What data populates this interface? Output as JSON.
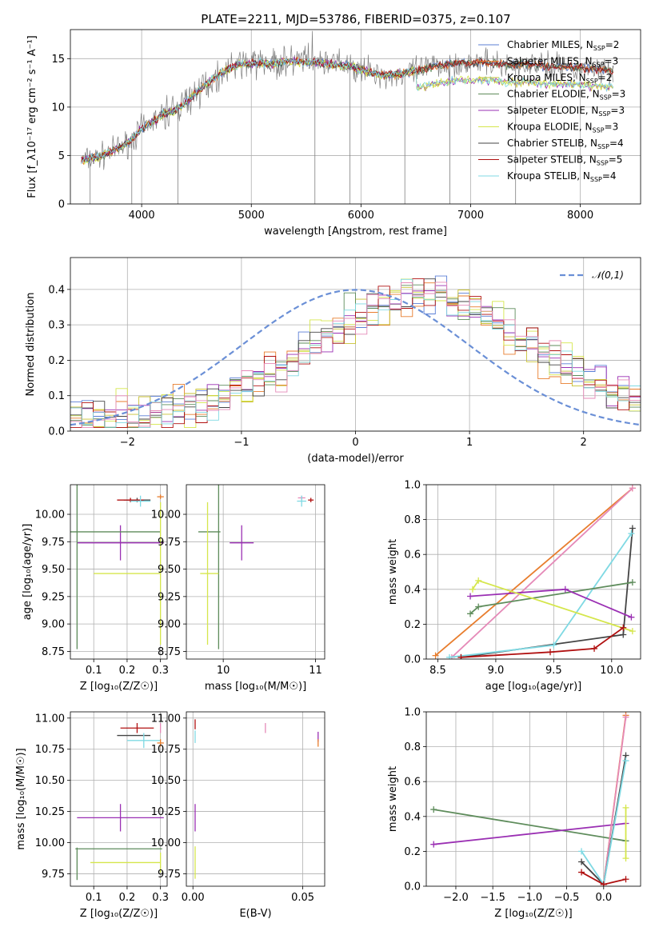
{
  "figure_title": "PLATE=2211, MJD=53786, FIBERID=0375, z=0.107",
  "colors": {
    "Chabrier MILES": "#5b7fd6",
    "Salpeter MILES": "#e87d2d",
    "Kroupa MILES": "#c8c234",
    "Chabrier ELODIE": "#5e8c5b",
    "Salpeter ELODIE": "#9a2fb3",
    "Kroupa ELODIE": "#d5e64c",
    "Chabrier STELIB": "#444444",
    "Salpeter STELIB": "#b01010",
    "Kroupa STELIB": "#7fd9e3",
    "data": "#7f7f7f",
    "salpeter_elodie_pink": "#e58ab8",
    "normal": "#6a8fd6"
  },
  "chart_data": [
    {
      "id": "spectrum",
      "type": "line",
      "xlabel": "wavelength [Angstrom, rest frame]",
      "ylabel": "Flux [f_λ10⁻¹⁷ erg cm⁻² s⁻¹ A⁻¹]",
      "xlim": [
        3350,
        8550
      ],
      "ylim": [
        0,
        18
      ],
      "xticks": [
        4000,
        5000,
        6000,
        7000,
        8000
      ],
      "yticks": [
        0,
        5,
        10,
        15
      ],
      "grid": true,
      "legend_position": "top-right",
      "legend": [
        {
          "label": "Chabrier MILES, N",
          "sub": "SSP",
          "suffix": "=2",
          "color": "#5b7fd6"
        },
        {
          "label": "Salpeter MILES, N",
          "sub": "SSP",
          "suffix": "=3",
          "color": "#e87d2d"
        },
        {
          "label": "Kroupa MILES, N",
          "sub": "SSP",
          "suffix": "=2",
          "color": "#c8c234"
        },
        {
          "label": "Chabrier ELODIE, N",
          "sub": "SSP",
          "suffix": "=3",
          "color": "#5e8c5b"
        },
        {
          "label": "Salpeter ELODIE, N",
          "sub": "SSP",
          "suffix": "=3",
          "color": "#9a2fb3"
        },
        {
          "label": "Kroupa ELODIE, N",
          "sub": "SSP",
          "suffix": "=3",
          "color": "#d5e64c"
        },
        {
          "label": "Chabrier STELIB, N",
          "sub": "SSP",
          "suffix": "=4",
          "color": "#444444"
        },
        {
          "label": "Salpeter STELIB, N",
          "sub": "SSP",
          "suffix": "=5",
          "color": "#b01010"
        },
        {
          "label": "Kroupa STELIB, N",
          "sub": "SSP",
          "suffix": "=4",
          "color": "#7fd9e3"
        }
      ],
      "continuum": [
        [
          3450,
          4.5
        ],
        [
          3600,
          4.8
        ],
        [
          3750,
          5.5
        ],
        [
          3900,
          6.5
        ],
        [
          4000,
          7.8
        ],
        [
          4100,
          8.5
        ],
        [
          4200,
          9.3
        ],
        [
          4300,
          9.6
        ],
        [
          4400,
          10.5
        ],
        [
          4500,
          11.5
        ],
        [
          4600,
          12.5
        ],
        [
          4700,
          13.3
        ],
        [
          4800,
          14.0
        ],
        [
          4900,
          14.4
        ],
        [
          5000,
          14.5
        ],
        [
          5100,
          14.6
        ],
        [
          5200,
          14.4
        ],
        [
          5300,
          14.7
        ],
        [
          5400,
          14.7
        ],
        [
          5500,
          14.6
        ],
        [
          5600,
          14.6
        ],
        [
          5700,
          14.5
        ],
        [
          5800,
          14.3
        ],
        [
          5900,
          14.2
        ],
        [
          6000,
          13.9
        ],
        [
          6100,
          13.5
        ],
        [
          6200,
          13.3
        ],
        [
          6300,
          13.4
        ],
        [
          6400,
          13.5
        ],
        [
          6500,
          13.7
        ],
        [
          6600,
          14.0
        ],
        [
          6700,
          14.3
        ],
        [
          6800,
          14.4
        ],
        [
          6900,
          14.6
        ],
        [
          7000,
          14.5
        ],
        [
          7100,
          14.6
        ],
        [
          7200,
          14.5
        ],
        [
          7300,
          14.4
        ],
        [
          7400,
          14.3
        ],
        [
          7500,
          14.4
        ],
        [
          7600,
          14.3
        ],
        [
          7700,
          14.2
        ],
        [
          7800,
          14.2
        ],
        [
          7900,
          14.1
        ],
        [
          8000,
          14.1
        ],
        [
          8100,
          14.0
        ],
        [
          8200,
          13.9
        ],
        [
          8300,
          13.8
        ]
      ]
    },
    {
      "id": "residuals",
      "type": "step",
      "xlabel": "(data-model)/error",
      "ylabel": "Normed distribution",
      "xlim": [
        -2.5,
        2.5
      ],
      "ylim": [
        0,
        0.49
      ],
      "xticks": [
        -2,
        -1,
        0,
        1,
        2
      ],
      "yticks": [
        0.0,
        0.1,
        0.2,
        0.3,
        0.4
      ],
      "grid": true,
      "legend_position": "top-right",
      "legend": [
        {
          "label": "𝒩(0,1)",
          "color": "#6a8fd6"
        }
      ],
      "peak_x": 0.6,
      "peak_y": 0.34,
      "width": 0.95
    },
    {
      "id": "age_vs_Z",
      "type": "scatter",
      "xlabel": "Z [log₁₀(Z/Z☉)]",
      "ylabel": "age  [log₁₀(age/yr)]",
      "xlim": [
        0.03,
        0.32
      ],
      "ylim": [
        8.68,
        10.27
      ],
      "xticks": [
        0.1,
        0.2,
        0.3
      ],
      "yticks": [
        8.75,
        9.0,
        9.25,
        9.5,
        9.75,
        10.0
      ],
      "points": [
        {
          "x": 0.23,
          "y": 10.13,
          "xerr": 0.04,
          "yerr": 0.02,
          "color": "#444444"
        },
        {
          "x": 0.21,
          "y": 10.13,
          "xerr": 0.04,
          "yerr": 0.02,
          "color": "#b01010"
        },
        {
          "x": 0.24,
          "y": 10.12,
          "xerr": 0.03,
          "yerr": 0.05,
          "color": "#7fd9e3"
        },
        {
          "x": 0.3,
          "y": 10.16,
          "xerr": 0.01,
          "yerr": 0.02,
          "color": "#e87d2d"
        },
        {
          "x": 0.18,
          "y": 9.74,
          "xerr": 0.13,
          "yerr": 0.16,
          "color": "#9a2fb3"
        },
        {
          "x": 0.05,
          "y": 9.84,
          "xerr": 0.25,
          "yerr": 0.0,
          "color": "#5e8c5b"
        },
        {
          "x": 0.05,
          "y": 9.84,
          "xerr": 0.0,
          "yerr": 1.07,
          "color": "#5e8c5b"
        },
        {
          "x": 0.2,
          "y": 9.46,
          "xerr": 0.1,
          "yerr": 0.0,
          "color": "#d5e64c"
        },
        {
          "x": 0.3,
          "y": 9.46,
          "xerr": 0.0,
          "yerr": 0.65,
          "color": "#d5e64c"
        }
      ]
    },
    {
      "id": "age_vs_mass",
      "type": "scatter",
      "xlabel": "mass [log₁₀(M/M☉)]",
      "ylabel": "",
      "xlim": [
        9.6,
        11.1
      ],
      "ylim": [
        8.68,
        10.27
      ],
      "xticks": [
        10,
        11
      ],
      "yticks": [
        8.75,
        9.0,
        9.25,
        9.5,
        9.75,
        10.0
      ],
      "points": [
        {
          "x": 10.85,
          "y": 10.15,
          "xerr": 0.04,
          "yerr": 0.02,
          "color": "#e58ab8"
        },
        {
          "x": 10.95,
          "y": 10.13,
          "xerr": 0.03,
          "yerr": 0.02,
          "color": "#b01010"
        },
        {
          "x": 10.85,
          "y": 10.12,
          "xerr": 0.05,
          "yerr": 0.05,
          "color": "#7fd9e3"
        },
        {
          "x": 10.2,
          "y": 9.74,
          "xerr": 0.13,
          "yerr": 0.16,
          "color": "#9a2fb3"
        },
        {
          "x": 9.85,
          "y": 9.84,
          "xerr": 0.12,
          "yerr": 0.0,
          "color": "#5e8c5b"
        },
        {
          "x": 9.95,
          "y": 9.84,
          "xerr": 0.0,
          "yerr": 1.07,
          "color": "#5e8c5b"
        },
        {
          "x": 9.85,
          "y": 9.46,
          "xerr": 0.1,
          "yerr": 0.0,
          "color": "#d5e64c"
        },
        {
          "x": 9.83,
          "y": 9.46,
          "xerr": 0.0,
          "yerr": 0.65,
          "color": "#d5e64c"
        }
      ]
    },
    {
      "id": "massweight_vs_age",
      "type": "line",
      "xlabel": "age  [log₁₀(age/yr)]",
      "ylabel": "mass weight",
      "xlim": [
        8.4,
        10.25
      ],
      "ylim": [
        0,
        1.0
      ],
      "xticks": [
        8.5,
        9.0,
        9.5,
        10.0
      ],
      "yticks": [
        0.0,
        0.2,
        0.4,
        0.6,
        0.8,
        1.0
      ],
      "series": [
        {
          "color": "#e87d2d",
          "points": [
            [
              8.48,
              0.02
            ],
            [
              10.18,
              0.98
            ]
          ]
        },
        {
          "color": "#e58ab8",
          "points": [
            [
              10.18,
              0.98
            ],
            [
              8.62,
              0.01
            ]
          ]
        },
        {
          "color": "#444444",
          "points": [
            [
              8.7,
              0.01
            ],
            [
              10.1,
              0.14
            ],
            [
              10.18,
              0.75
            ]
          ]
        },
        {
          "color": "#7fd9e3",
          "points": [
            [
              8.6,
              0.01
            ],
            [
              9.5,
              0.08
            ],
            [
              10.17,
              0.72
            ]
          ]
        },
        {
          "color": "#5e8c5b",
          "points": [
            [
              8.78,
              0.26
            ],
            [
              8.85,
              0.3
            ],
            [
              10.18,
              0.44
            ]
          ]
        },
        {
          "color": "#9a2fb3",
          "points": [
            [
              8.78,
              0.36
            ],
            [
              9.6,
              0.4
            ],
            [
              10.17,
              0.24
            ]
          ]
        },
        {
          "color": "#d5e64c",
          "points": [
            [
              8.8,
              0.4
            ],
            [
              8.85,
              0.45
            ],
            [
              10.18,
              0.16
            ]
          ]
        },
        {
          "color": "#b01010",
          "points": [
            [
              8.7,
              0.01
            ],
            [
              9.47,
              0.04
            ],
            [
              9.85,
              0.06
            ],
            [
              10.1,
              0.18
            ]
          ]
        }
      ]
    },
    {
      "id": "mass_vs_Z",
      "type": "scatter",
      "xlabel": "Z [log₁₀(Z/Z☉)]",
      "ylabel": "mass [log₁₀(M/M☉)]",
      "xlim": [
        0.03,
        0.32
      ],
      "ylim": [
        9.65,
        11.05
      ],
      "xticks": [
        0.1,
        0.2,
        0.3
      ],
      "yticks": [
        9.75,
        10.0,
        10.25,
        10.5,
        10.75,
        11.0
      ],
      "points": [
        {
          "x": 0.23,
          "y": 10.92,
          "xerr": 0.05,
          "yerr": 0.04,
          "color": "#b01010"
        },
        {
          "x": 0.22,
          "y": 10.86,
          "xerr": 0.05,
          "yerr": 0.0,
          "color": "#444444"
        },
        {
          "x": 0.25,
          "y": 10.82,
          "xerr": 0.05,
          "yerr": 0.06,
          "color": "#7fd9e3"
        },
        {
          "x": 0.3,
          "y": 10.8,
          "xerr": 0.01,
          "yerr": 0.03,
          "color": "#e87d2d"
        },
        {
          "x": 0.3,
          "y": 10.92,
          "xerr": 0.0,
          "yerr": 0.04,
          "color": "#e58ab8"
        },
        {
          "x": 0.18,
          "y": 10.2,
          "xerr": 0.13,
          "yerr": 0.11,
          "color": "#9a2fb3"
        },
        {
          "x": 0.175,
          "y": 9.95,
          "xerr": 0.13,
          "yerr": 0.0,
          "color": "#5e8c5b"
        },
        {
          "x": 0.05,
          "y": 9.83,
          "xerr": 0.0,
          "yerr": 0.13,
          "color": "#5e8c5b"
        },
        {
          "x": 0.195,
          "y": 9.84,
          "xerr": 0.105,
          "yerr": 0.0,
          "color": "#d5e64c"
        },
        {
          "x": 0.3,
          "y": 9.84,
          "xerr": 0.0,
          "yerr": 0.08,
          "color": "#d5e64c"
        }
      ]
    },
    {
      "id": "mass_vs_EBV",
      "type": "scatter",
      "xlabel": "E(B-V)",
      "ylabel": "",
      "xlim": [
        -0.003,
        0.06
      ],
      "ylim": [
        9.65,
        11.05
      ],
      "xticks": [
        0.0,
        0.05
      ],
      "yticks": [
        9.75,
        10.0,
        10.25,
        10.5,
        10.75,
        11.0
      ],
      "points": [
        {
          "x": 0.001,
          "y": 10.95,
          "xerr": 0.0,
          "yerr": 0.04,
          "color": "#b01010"
        },
        {
          "x": 0.001,
          "y": 10.85,
          "xerr": 0.0,
          "yerr": 0.05,
          "color": "#7fd9e3"
        },
        {
          "x": 0.033,
          "y": 10.92,
          "xerr": 0.0,
          "yerr": 0.04,
          "color": "#e58ab8"
        },
        {
          "x": 0.057,
          "y": 10.85,
          "xerr": 0.0,
          "yerr": 0.04,
          "color": "#9a2fb3"
        },
        {
          "x": 0.057,
          "y": 10.8,
          "xerr": 0.0,
          "yerr": 0.03,
          "color": "#e87d2d"
        },
        {
          "x": 0.001,
          "y": 10.2,
          "xerr": 0.0,
          "yerr": 0.11,
          "color": "#9a2fb3"
        },
        {
          "x": 0.001,
          "y": 9.84,
          "xerr": 0.0,
          "yerr": 0.13,
          "color": "#d5e64c"
        }
      ]
    },
    {
      "id": "massweight_vs_Z",
      "type": "line",
      "xlabel": "Z [log₁₀(Z/Z☉)]",
      "ylabel": "mass weight",
      "xlim": [
        -2.4,
        0.5
      ],
      "ylim": [
        0,
        1.0
      ],
      "xticks": [
        -2.0,
        -1.5,
        -1.0,
        -0.5,
        0.0
      ],
      "yticks": [
        0.0,
        0.2,
        0.4,
        0.6,
        0.8,
        1.0
      ],
      "series": [
        {
          "color": "#5e8c5b",
          "points": [
            [
              -2.3,
              0.44
            ],
            [
              0.3,
              0.26
            ]
          ]
        },
        {
          "color": "#9a2fb3",
          "points": [
            [
              -2.3,
              0.24
            ],
            [
              0.3,
              0.36
            ]
          ]
        },
        {
          "color": "#e87d2d",
          "points": [
            [
              0.0,
              0.01
            ],
            [
              0.3,
              0.98
            ]
          ]
        },
        {
          "color": "#e58ab8",
          "points": [
            [
              0.0,
              0.01
            ],
            [
              0.3,
              0.97
            ]
          ]
        },
        {
          "color": "#444444",
          "points": [
            [
              -0.3,
              0.14
            ],
            [
              0.0,
              0.01
            ],
            [
              0.3,
              0.75
            ]
          ]
        },
        {
          "color": "#7fd9e3",
          "points": [
            [
              -0.3,
              0.2
            ],
            [
              0.0,
              0.01
            ],
            [
              0.3,
              0.72
            ]
          ]
        },
        {
          "color": "#b01010",
          "points": [
            [
              -0.3,
              0.08
            ],
            [
              0.0,
              0.01
            ],
            [
              0.3,
              0.04
            ]
          ]
        },
        {
          "color": "#d5e64c",
          "points": [
            [
              0.3,
              0.45
            ],
            [
              0.3,
              0.16
            ]
          ]
        }
      ]
    }
  ]
}
